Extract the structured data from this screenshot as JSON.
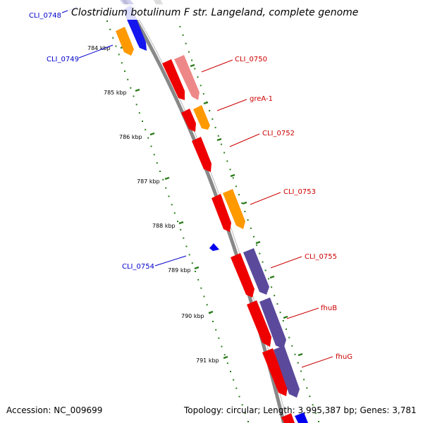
{
  "title": "Clostridium botulinum F str. Langeland, complete genome",
  "footer": {
    "accession": "Accession: NC_009699",
    "topology": "Topology: circular; Length: 3,995,387 bp; Genes: 3,781"
  },
  "colors": {
    "backbone": "#888888",
    "tick": "#2e7d1e",
    "forward_label": "#0000cc",
    "reverse_label": "#cc0000",
    "red_gene": "#ee0000",
    "orange_gene": "#ff9900",
    "purple_gene": "#5b4a9c",
    "pink_gene": "#ee8888",
    "blue_gene": "#0000ee"
  },
  "ticks": [
    "784 kbp",
    "785 kbp",
    "786 kbp",
    "787 kbp",
    "788 kbp",
    "789 kbp",
    "790 kbp",
    "791 kbp"
  ],
  "genes": [
    {
      "label": "CLI_0748",
      "strand": "forward"
    },
    {
      "label": "CLI_0749",
      "strand": "forward"
    },
    {
      "label": "CLI_0750",
      "strand": "reverse"
    },
    {
      "label": "greA-1",
      "strand": "reverse"
    },
    {
      "label": "CLI_0752",
      "strand": "reverse"
    },
    {
      "label": "CLI_0753",
      "strand": "reverse"
    },
    {
      "label": "CLI_0754",
      "strand": "forward"
    },
    {
      "label": "CLI_0755",
      "strand": "reverse"
    },
    {
      "label": "fhuB",
      "strand": "reverse"
    },
    {
      "label": "fhuG",
      "strand": "reverse"
    }
  ]
}
